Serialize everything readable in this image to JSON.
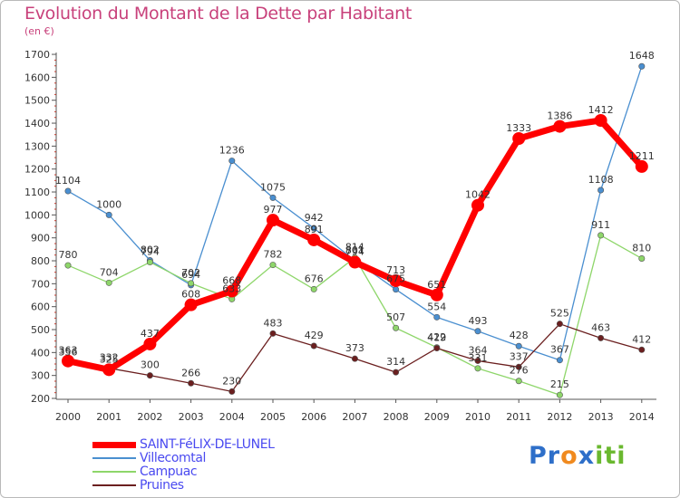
{
  "header": {
    "title": "Evolution du Montant de la Dette par Habitant",
    "subtitle": "(en €)"
  },
  "logo": {
    "text": "Proxiti",
    "letters": [
      "P",
      "r",
      "o",
      "x",
      "i",
      "t",
      "i"
    ],
    "colors": [
      "#2e6fc9",
      "#2e6fc9",
      "#f08a1f",
      "#2e6fc9",
      "#6ab82f",
      "#6ab82f",
      "#6ab82f"
    ]
  },
  "chart_data": {
    "type": "line",
    "title": "Evolution du Montant de la Dette par Habitant",
    "subtitle": "(en €)",
    "x": [
      "2000",
      "2001",
      "2002",
      "2003",
      "2004",
      "2005",
      "2006",
      "2007",
      "2008",
      "2009",
      "2010",
      "2011",
      "2012",
      "2013",
      "2014"
    ],
    "ylim": [
      200,
      1700
    ],
    "yticks": [
      200,
      300,
      400,
      500,
      600,
      700,
      800,
      900,
      1000,
      1100,
      1200,
      1300,
      1400,
      1500,
      1600,
      1700
    ],
    "grid": false,
    "legend_position": "bottom-left",
    "series": [
      {
        "name": "SAINT-FéLIX-DE-LUNEL",
        "color": "#ff0000",
        "emphasis": true,
        "values": [
          363,
          325,
          437,
          608,
          668,
          977,
          891,
          794,
          713,
          651,
          1042,
          1333,
          1386,
          1412,
          1211
        ]
      },
      {
        "name": "Villecomtal",
        "color": "#4a8fd0",
        "emphasis": false,
        "values": [
          1104,
          1000,
          802,
          694,
          1236,
          1075,
          942,
          801,
          675,
          554,
          493,
          428,
          367,
          1108,
          1648
        ]
      },
      {
        "name": "Campuac",
        "color": "#8ed66a",
        "emphasis": false,
        "values": [
          780,
          704,
          794,
          702,
          633,
          782,
          676,
          814,
          507,
          422,
          331,
          276,
          215,
          911,
          810
        ]
      },
      {
        "name": "Pruines",
        "color": "#6b1f1f",
        "emphasis": false,
        "values": [
          356,
          332,
          300,
          266,
          230,
          483,
          429,
          373,
          314,
          419,
          364,
          337,
          525,
          463,
          412
        ]
      }
    ]
  }
}
